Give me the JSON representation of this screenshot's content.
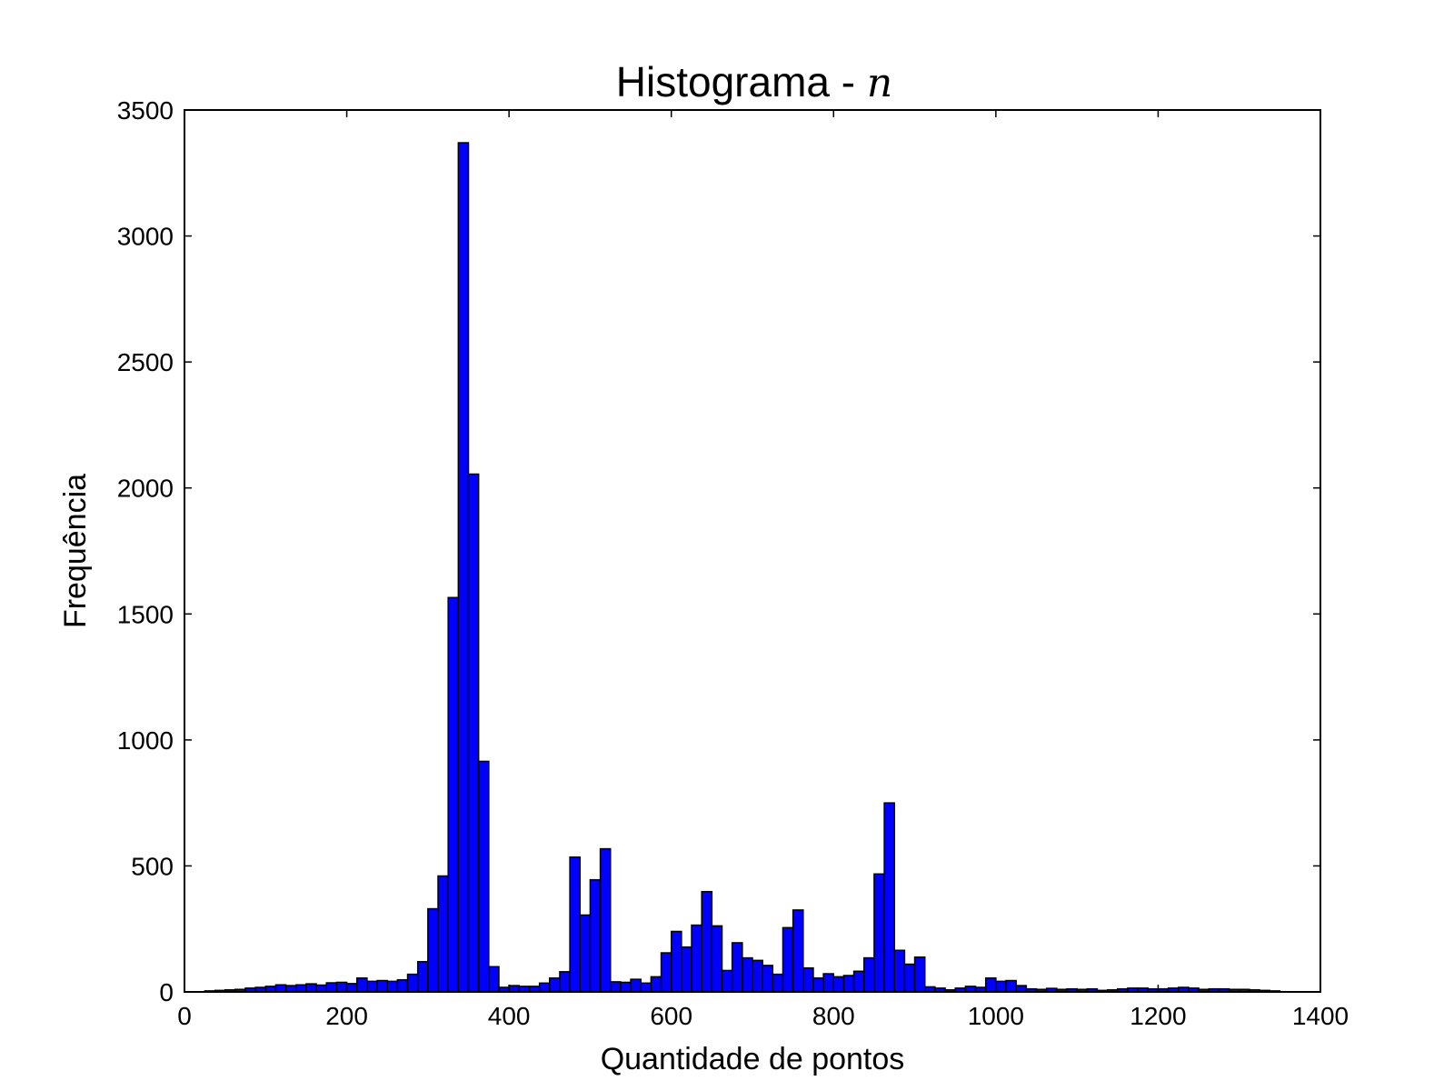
{
  "chart_data": {
    "type": "bar",
    "title": "Histograma - ",
    "title_math": "n",
    "xlabel": "Quantidade de pontos",
    "ylabel": "Frequência",
    "xlim": [
      0,
      1400
    ],
    "ylim": [
      0,
      3500
    ],
    "xticks": [
      0,
      200,
      400,
      600,
      800,
      1000,
      1200,
      1400
    ],
    "yticks": [
      0,
      500,
      1000,
      1500,
      2000,
      2500,
      3000,
      3500
    ],
    "grid": false,
    "legend": "none",
    "bar_color": "#0000ff",
    "edge_color": "#000000",
    "bin_width": 12.5,
    "bin_start": 25,
    "values": [
      4,
      6,
      8,
      10,
      15,
      18,
      22,
      28,
      25,
      28,
      32,
      27,
      36,
      38,
      33,
      55,
      42,
      45,
      42,
      48,
      70,
      120,
      330,
      460,
      1565,
      3370,
      2055,
      915,
      100,
      18,
      25,
      22,
      22,
      35,
      55,
      80,
      535,
      305,
      445,
      568,
      40,
      38,
      50,
      35,
      60,
      155,
      240,
      178,
      265,
      398,
      262,
      85,
      195,
      135,
      125,
      105,
      70,
      255,
      325,
      95,
      55,
      72,
      60,
      65,
      82,
      135,
      468,
      750,
      165,
      110,
      138,
      20,
      15,
      8,
      15,
      22,
      18,
      55,
      42,
      45,
      25,
      12,
      10,
      14,
      10,
      12,
      10,
      12,
      6,
      8,
      12,
      15,
      15,
      12,
      12,
      15,
      18,
      15,
      10,
      12,
      12,
      10,
      10,
      8,
      6,
      4
    ]
  }
}
